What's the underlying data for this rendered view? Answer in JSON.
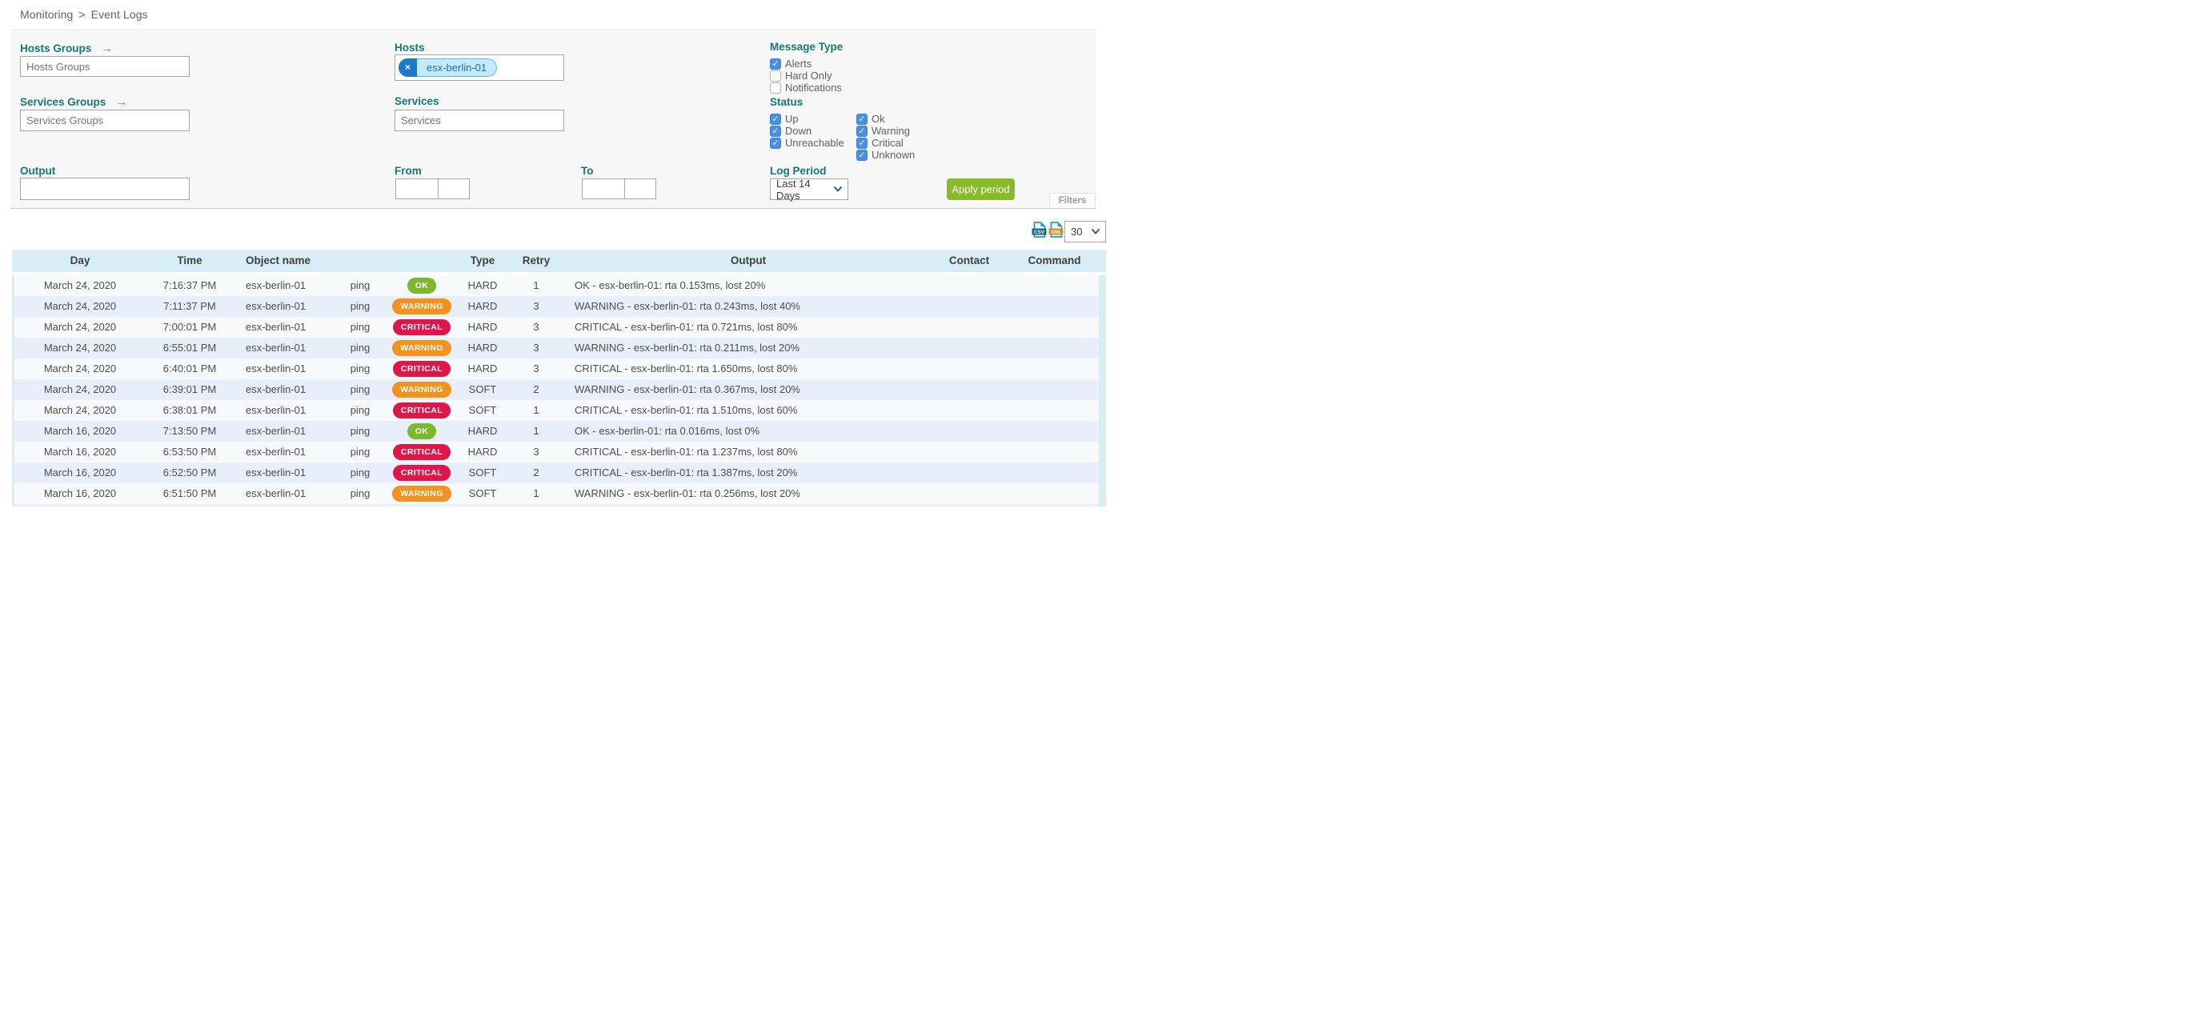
{
  "breadcrumb": {
    "section": "Monitoring",
    "separator": ">",
    "page": "Event Logs"
  },
  "filters": {
    "hosts_groups": {
      "label": "Hosts Groups",
      "goto_arrow": "→",
      "placeholder": "Hosts Groups",
      "value": ""
    },
    "services_groups": {
      "label": "Services Groups",
      "goto_arrow": "→",
      "placeholder": "Services Groups",
      "value": ""
    },
    "hosts": {
      "label": "Hosts",
      "selected": [
        "esx-berlin-01"
      ],
      "remove_symbol": "×"
    },
    "services": {
      "label": "Services",
      "placeholder": "Services",
      "value": ""
    },
    "output": {
      "label": "Output",
      "value": ""
    },
    "from": {
      "label": "From",
      "date_value": "",
      "time_value": ""
    },
    "to": {
      "label": "To",
      "date_value": "",
      "time_value": ""
    },
    "message_type": {
      "label": "Message Type",
      "options": [
        {
          "label": "Alerts",
          "checked": true
        },
        {
          "label": "Hard Only",
          "checked": false
        },
        {
          "label": "Notifications",
          "checked": false
        }
      ]
    },
    "status": {
      "label": "Status",
      "host_options": [
        {
          "label": "Up",
          "checked": true
        },
        {
          "label": "Down",
          "checked": true
        },
        {
          "label": "Unreachable",
          "checked": true
        }
      ],
      "service_options": [
        {
          "label": "Ok",
          "checked": true
        },
        {
          "label": "Warning",
          "checked": true
        },
        {
          "label": "Critical",
          "checked": true
        },
        {
          "label": "Unknown",
          "checked": true
        }
      ]
    },
    "log_period": {
      "label": "Log Period",
      "selected": "Last 14 Days"
    },
    "apply_button": "Apply period",
    "filters_tab": "Filters"
  },
  "toolbar": {
    "csv_label": "CSV",
    "xml_label": "XML",
    "page_size": "30"
  },
  "table": {
    "columns": [
      "Day",
      "Time",
      "Object name",
      "",
      "",
      "Type",
      "Retry",
      "Output",
      "Contact",
      "Command"
    ],
    "rows": [
      {
        "day": "March 24, 2020",
        "time": "7:16:37 PM",
        "object": "esx-berlin-01",
        "service": "ping",
        "status": "OK",
        "state_type": "HARD",
        "retry": "1",
        "output": "OK - esx-berlin-01: rta 0.153ms, lost 20%",
        "contact": "",
        "command": ""
      },
      {
        "day": "March 24, 2020",
        "time": "7:11:37 PM",
        "object": "esx-berlin-01",
        "service": "ping",
        "status": "WARNING",
        "state_type": "HARD",
        "retry": "3",
        "output": "WARNING - esx-berlin-01: rta 0.243ms, lost 40%",
        "contact": "",
        "command": ""
      },
      {
        "day": "March 24, 2020",
        "time": "7:00:01 PM",
        "object": "esx-berlin-01",
        "service": "ping",
        "status": "CRITICAL",
        "state_type": "HARD",
        "retry": "3",
        "output": "CRITICAL - esx-berlin-01: rta 0.721ms, lost 80%",
        "contact": "",
        "command": ""
      },
      {
        "day": "March 24, 2020",
        "time": "6:55:01 PM",
        "object": "esx-berlin-01",
        "service": "ping",
        "status": "WARNING",
        "state_type": "HARD",
        "retry": "3",
        "output": "WARNING - esx-berlin-01: rta 0.211ms, lost 20%",
        "contact": "",
        "command": ""
      },
      {
        "day": "March 24, 2020",
        "time": "6:40:01 PM",
        "object": "esx-berlin-01",
        "service": "ping",
        "status": "CRITICAL",
        "state_type": "HARD",
        "retry": "3",
        "output": "CRITICAL - esx-berlin-01: rta 1.650ms, lost 80%",
        "contact": "",
        "command": ""
      },
      {
        "day": "March 24, 2020",
        "time": "6:39:01 PM",
        "object": "esx-berlin-01",
        "service": "ping",
        "status": "WARNING",
        "state_type": "SOFT",
        "retry": "2",
        "output": "WARNING - esx-berlin-01: rta 0.367ms, lost 20%",
        "contact": "",
        "command": ""
      },
      {
        "day": "March 24, 2020",
        "time": "6:38:01 PM",
        "object": "esx-berlin-01",
        "service": "ping",
        "status": "CRITICAL",
        "state_type": "SOFT",
        "retry": "1",
        "output": "CRITICAL - esx-berlin-01: rta 1.510ms, lost 60%",
        "contact": "",
        "command": ""
      },
      {
        "day": "March 16, 2020",
        "time": "7:13:50 PM",
        "object": "esx-berlin-01",
        "service": "ping",
        "status": "OK",
        "state_type": "HARD",
        "retry": "1",
        "output": "OK - esx-berlin-01: rta 0.016ms, lost 0%",
        "contact": "",
        "command": ""
      },
      {
        "day": "March 16, 2020",
        "time": "6:53:50 PM",
        "object": "esx-berlin-01",
        "service": "ping",
        "status": "CRITICAL",
        "state_type": "HARD",
        "retry": "3",
        "output": "CRITICAL - esx-berlin-01: rta 1.237ms, lost 80%",
        "contact": "",
        "command": ""
      },
      {
        "day": "March 16, 2020",
        "time": "6:52:50 PM",
        "object": "esx-berlin-01",
        "service": "ping",
        "status": "CRITICAL",
        "state_type": "SOFT",
        "retry": "2",
        "output": "CRITICAL - esx-berlin-01: rta 1.387ms, lost 20%",
        "contact": "",
        "command": ""
      },
      {
        "day": "March 16, 2020",
        "time": "6:51:50 PM",
        "object": "esx-berlin-01",
        "service": "ping",
        "status": "WARNING",
        "state_type": "SOFT",
        "retry": "1",
        "output": "WARNING - esx-berlin-01: rta 0.256ms, lost 20%",
        "contact": "",
        "command": ""
      }
    ]
  },
  "colors": {
    "label_teal": "#15796f",
    "link_blue": "#3d9be9",
    "checkbox_blue": "#4a90e2",
    "chip_bg": "#c5eafd",
    "chip_border": "#58b9f5",
    "chip_text": "#1b6fb1",
    "chip_remove_bg": "#1d7ac9",
    "apply_green": "#87bb28",
    "header_bg": "#d8eef6",
    "row_odd": "#f7fafd",
    "row_even": "#e9effa",
    "status_ok": "#7ab82c",
    "status_warning": "#f1931c",
    "status_critical": "#e0164a"
  }
}
